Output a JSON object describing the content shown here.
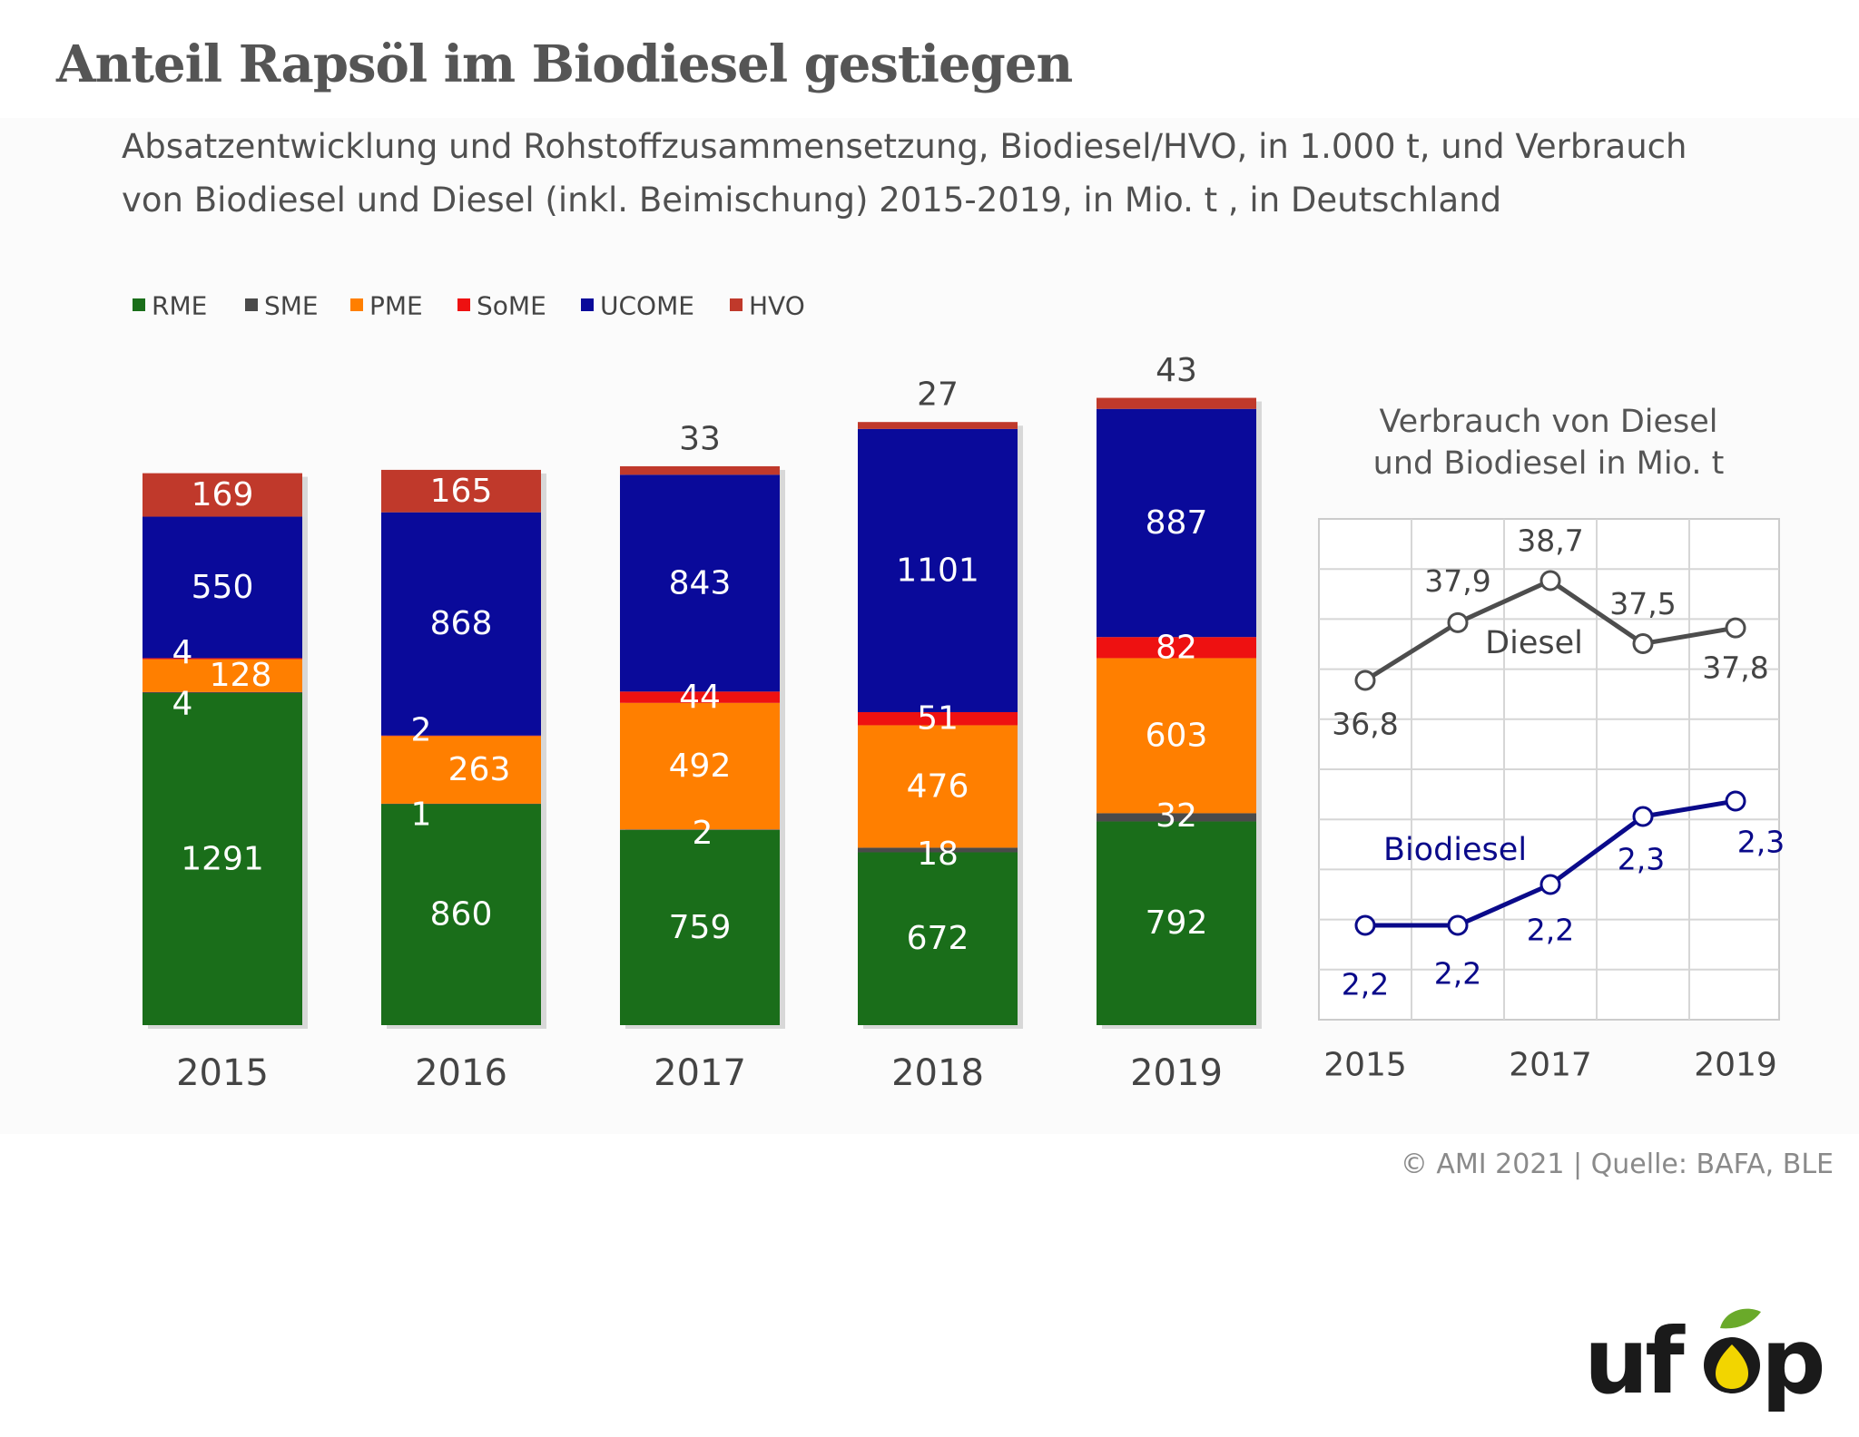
{
  "title": "Anteil Rapsöl im Biodiesel gestiegen",
  "subtitle_line1": "Absatzentwicklung und Rohstoffzusammensetzung, Biodiesel/HVO, in 1.000 t, und Verbrauch",
  "subtitle_line2": "von Biodiesel und Diesel (inkl. Beimischung) 2015-2019, in Mio. t , in Deutschland",
  "source": "© AMI 2021 | Quelle: BAFA, BLE",
  "logo_text": "ufop",
  "colors": {
    "RME": "#1a6e1a",
    "SME": "#4a4a4a",
    "PME": "#ff7f00",
    "SoME": "#ee1111",
    "UCOME": "#0a0a9a",
    "HVO": "#c0392b",
    "diesel_line": "#4d4d4d",
    "biodiesel_line": "#0a0a8a"
  },
  "chart_data": [
    {
      "type": "bar",
      "stacked": true,
      "categories": [
        "2015",
        "2016",
        "2017",
        "2018",
        "2019"
      ],
      "legend_position": "top-left",
      "series": [
        {
          "name": "RME",
          "values": [
            1291,
            860,
            759,
            672,
            792
          ],
          "labels": [
            "1291",
            "860",
            "759",
            "672",
            "792"
          ]
        },
        {
          "name": "SME",
          "values": [
            4,
            1,
            2,
            18,
            32
          ],
          "labels": [
            "4",
            "1",
            "2",
            "18",
            "32"
          ]
        },
        {
          "name": "PME",
          "values": [
            128,
            263,
            492,
            476,
            603
          ],
          "labels": [
            "128",
            "263",
            "492",
            "476",
            "603"
          ]
        },
        {
          "name": "SoME",
          "values": [
            4,
            2,
            44,
            51,
            82
          ],
          "labels": [
            "4",
            "2",
            "44",
            "51",
            "82"
          ]
        },
        {
          "name": "UCOME",
          "values": [
            550,
            868,
            843,
            1101,
            887
          ],
          "labels": [
            "550",
            "868",
            "843",
            "1101",
            "887"
          ]
        },
        {
          "name": "HVO",
          "values": [
            169,
            165,
            33,
            27,
            43
          ],
          "labels": [
            "169",
            "165",
            "33",
            "27",
            "43"
          ]
        }
      ]
    },
    {
      "type": "line",
      "title_line1": "Verbrauch von Diesel",
      "title_line2": "und Biodiesel in Mio. t",
      "x": [
        "2015",
        "2016",
        "2017",
        "2018",
        "2019"
      ],
      "x_tick_labels": [
        "2015",
        "2017",
        "2019"
      ],
      "grid": true,
      "series": [
        {
          "name": "Diesel",
          "values": [
            36.8,
            37.9,
            38.7,
            37.5,
            37.8
          ],
          "labels": [
            "36,8",
            "37,9",
            "38,7",
            "37,5",
            "37,8"
          ]
        },
        {
          "name": "Biodiesel",
          "values": [
            2.2,
            2.2,
            2.2,
            2.3,
            2.3
          ],
          "labels": [
            "2,2",
            "2,2",
            "2,2",
            "2,3",
            "2,3"
          ]
        }
      ]
    }
  ]
}
